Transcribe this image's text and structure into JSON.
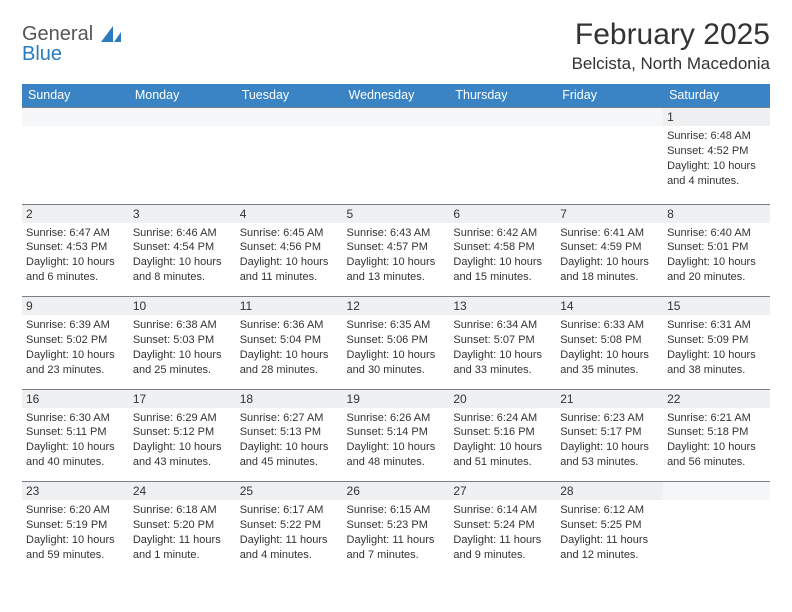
{
  "logo": {
    "word1": "General",
    "word2": "Blue"
  },
  "title": "February 2025",
  "location": "Belcista, North Macedonia",
  "colors": {
    "header_bg": "#3a83c5",
    "header_fg": "#ffffff",
    "daynum_bg": "#eef0f2",
    "rule": "#7a7f85",
    "text": "#333333",
    "logo_blue": "#2b7bbf"
  },
  "weekdays": [
    "Sunday",
    "Monday",
    "Tuesday",
    "Wednesday",
    "Thursday",
    "Friday",
    "Saturday"
  ],
  "grid": {
    "cols": 7,
    "rows": 5,
    "cell_font_size": 11,
    "header_font_size": 12.5,
    "title_font_size": 30,
    "location_font_size": 17
  },
  "weeks": [
    [
      null,
      null,
      null,
      null,
      null,
      null,
      {
        "n": "1",
        "sr": "Sunrise: 6:48 AM",
        "ss": "Sunset: 4:52 PM",
        "dl": "Daylight: 10 hours and 4 minutes."
      }
    ],
    [
      {
        "n": "2",
        "sr": "Sunrise: 6:47 AM",
        "ss": "Sunset: 4:53 PM",
        "dl": "Daylight: 10 hours and 6 minutes."
      },
      {
        "n": "3",
        "sr": "Sunrise: 6:46 AM",
        "ss": "Sunset: 4:54 PM",
        "dl": "Daylight: 10 hours and 8 minutes."
      },
      {
        "n": "4",
        "sr": "Sunrise: 6:45 AM",
        "ss": "Sunset: 4:56 PM",
        "dl": "Daylight: 10 hours and 11 minutes."
      },
      {
        "n": "5",
        "sr": "Sunrise: 6:43 AM",
        "ss": "Sunset: 4:57 PM",
        "dl": "Daylight: 10 hours and 13 minutes."
      },
      {
        "n": "6",
        "sr": "Sunrise: 6:42 AM",
        "ss": "Sunset: 4:58 PM",
        "dl": "Daylight: 10 hours and 15 minutes."
      },
      {
        "n": "7",
        "sr": "Sunrise: 6:41 AM",
        "ss": "Sunset: 4:59 PM",
        "dl": "Daylight: 10 hours and 18 minutes."
      },
      {
        "n": "8",
        "sr": "Sunrise: 6:40 AM",
        "ss": "Sunset: 5:01 PM",
        "dl": "Daylight: 10 hours and 20 minutes."
      }
    ],
    [
      {
        "n": "9",
        "sr": "Sunrise: 6:39 AM",
        "ss": "Sunset: 5:02 PM",
        "dl": "Daylight: 10 hours and 23 minutes."
      },
      {
        "n": "10",
        "sr": "Sunrise: 6:38 AM",
        "ss": "Sunset: 5:03 PM",
        "dl": "Daylight: 10 hours and 25 minutes."
      },
      {
        "n": "11",
        "sr": "Sunrise: 6:36 AM",
        "ss": "Sunset: 5:04 PM",
        "dl": "Daylight: 10 hours and 28 minutes."
      },
      {
        "n": "12",
        "sr": "Sunrise: 6:35 AM",
        "ss": "Sunset: 5:06 PM",
        "dl": "Daylight: 10 hours and 30 minutes."
      },
      {
        "n": "13",
        "sr": "Sunrise: 6:34 AM",
        "ss": "Sunset: 5:07 PM",
        "dl": "Daylight: 10 hours and 33 minutes."
      },
      {
        "n": "14",
        "sr": "Sunrise: 6:33 AM",
        "ss": "Sunset: 5:08 PM",
        "dl": "Daylight: 10 hours and 35 minutes."
      },
      {
        "n": "15",
        "sr": "Sunrise: 6:31 AM",
        "ss": "Sunset: 5:09 PM",
        "dl": "Daylight: 10 hours and 38 minutes."
      }
    ],
    [
      {
        "n": "16",
        "sr": "Sunrise: 6:30 AM",
        "ss": "Sunset: 5:11 PM",
        "dl": "Daylight: 10 hours and 40 minutes."
      },
      {
        "n": "17",
        "sr": "Sunrise: 6:29 AM",
        "ss": "Sunset: 5:12 PM",
        "dl": "Daylight: 10 hours and 43 minutes."
      },
      {
        "n": "18",
        "sr": "Sunrise: 6:27 AM",
        "ss": "Sunset: 5:13 PM",
        "dl": "Daylight: 10 hours and 45 minutes."
      },
      {
        "n": "19",
        "sr": "Sunrise: 6:26 AM",
        "ss": "Sunset: 5:14 PM",
        "dl": "Daylight: 10 hours and 48 minutes."
      },
      {
        "n": "20",
        "sr": "Sunrise: 6:24 AM",
        "ss": "Sunset: 5:16 PM",
        "dl": "Daylight: 10 hours and 51 minutes."
      },
      {
        "n": "21",
        "sr": "Sunrise: 6:23 AM",
        "ss": "Sunset: 5:17 PM",
        "dl": "Daylight: 10 hours and 53 minutes."
      },
      {
        "n": "22",
        "sr": "Sunrise: 6:21 AM",
        "ss": "Sunset: 5:18 PM",
        "dl": "Daylight: 10 hours and 56 minutes."
      }
    ],
    [
      {
        "n": "23",
        "sr": "Sunrise: 6:20 AM",
        "ss": "Sunset: 5:19 PM",
        "dl": "Daylight: 10 hours and 59 minutes."
      },
      {
        "n": "24",
        "sr": "Sunrise: 6:18 AM",
        "ss": "Sunset: 5:20 PM",
        "dl": "Daylight: 11 hours and 1 minute."
      },
      {
        "n": "25",
        "sr": "Sunrise: 6:17 AM",
        "ss": "Sunset: 5:22 PM",
        "dl": "Daylight: 11 hours and 4 minutes."
      },
      {
        "n": "26",
        "sr": "Sunrise: 6:15 AM",
        "ss": "Sunset: 5:23 PM",
        "dl": "Daylight: 11 hours and 7 minutes."
      },
      {
        "n": "27",
        "sr": "Sunrise: 6:14 AM",
        "ss": "Sunset: 5:24 PM",
        "dl": "Daylight: 11 hours and 9 minutes."
      },
      {
        "n": "28",
        "sr": "Sunrise: 6:12 AM",
        "ss": "Sunset: 5:25 PM",
        "dl": "Daylight: 11 hours and 12 minutes."
      },
      null
    ]
  ]
}
